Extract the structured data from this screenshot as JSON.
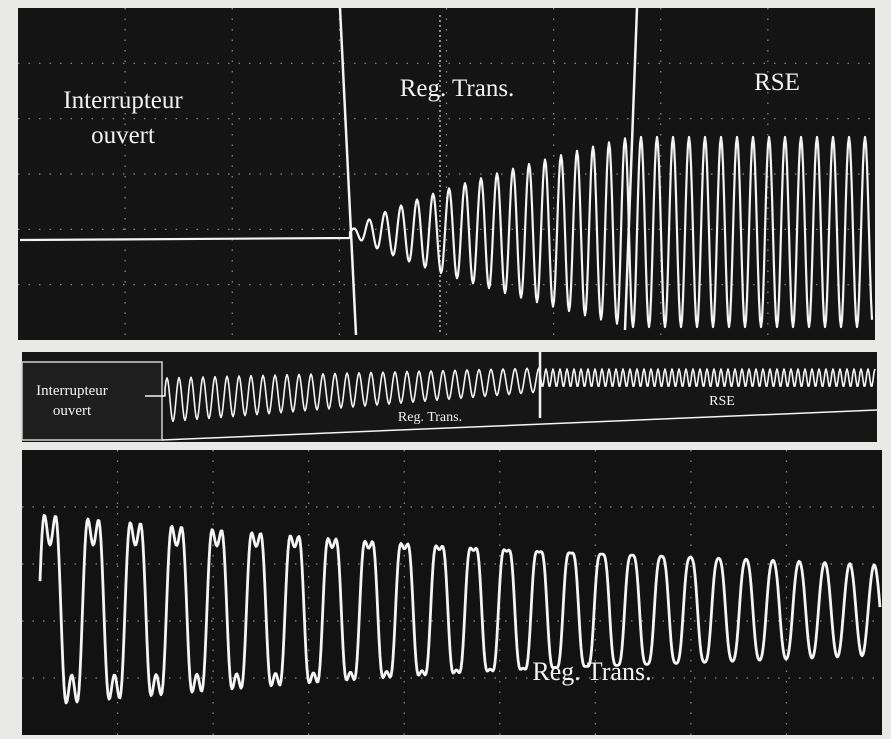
{
  "top_panel": {
    "label_left": [
      "Interrupteur",
      "ouvert"
    ],
    "label_middle": "Reg. Trans.",
    "label_right": "RSE"
  },
  "middle_panel": {
    "label_left": [
      "Interrupteur",
      "ouvert"
    ],
    "label_middle": "Reg. Trans.",
    "label_right": "RSE"
  },
  "bottom_panel": {
    "label": "Reg. Trans."
  }
}
